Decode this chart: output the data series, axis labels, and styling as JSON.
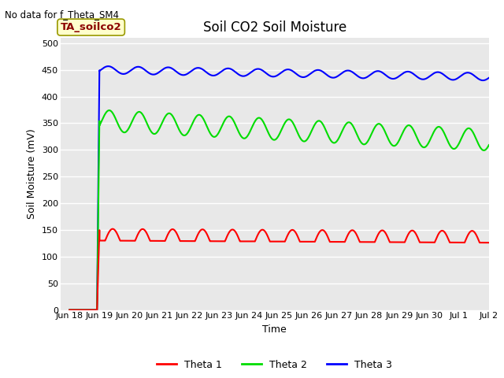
{
  "title": "Soil CO2 Soil Moisture",
  "ylabel": "Soil Moisture (mV)",
  "xlabel": "Time",
  "no_data_text": "No data for f_Theta_SM4",
  "annotation_text": "TA_soilco2",
  "ylim": [
    0,
    510
  ],
  "yticks": [
    0,
    50,
    100,
    150,
    200,
    250,
    300,
    350,
    400,
    450,
    500
  ],
  "xtick_labels": [
    "Jun 18",
    "Jun 19",
    "Jun 20",
    "Jun 21",
    "Jun 22",
    "Jun 23",
    "Jun 24",
    "Jun 25",
    "Jun 26",
    "Jun 27",
    "Jun 28",
    "Jun 29",
    "Jun 30",
    "Jul 1",
    "Jul 2"
  ],
  "theta1_color": "#ff0000",
  "theta2_color": "#00dd00",
  "theta3_color": "#0000ff",
  "background_color": "#e8e8e8",
  "grid_color": "#ffffff",
  "legend_labels": [
    "Theta 1",
    "Theta 2",
    "Theta 3"
  ],
  "title_fontsize": 12,
  "axis_label_fontsize": 9,
  "tick_fontsize": 8,
  "figsize": [
    6.4,
    4.8
  ],
  "dpi": 100
}
